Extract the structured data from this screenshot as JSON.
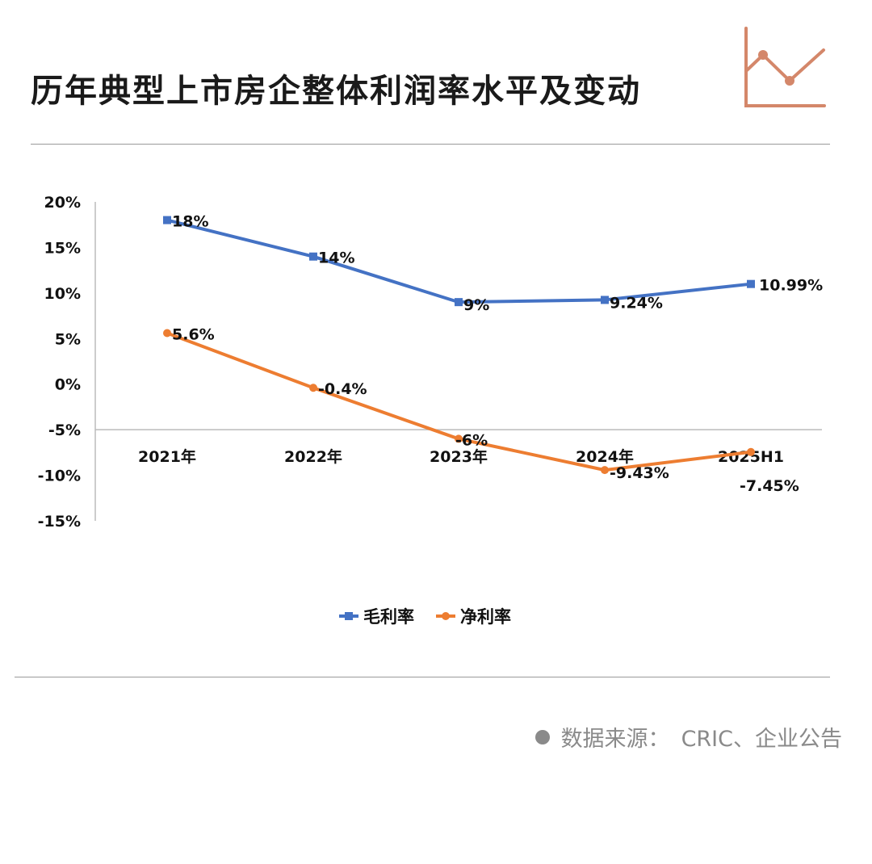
{
  "title": "历年典型上市房企整体利润率水平及变动",
  "source": {
    "label": "数据来源：",
    "text": "CRIC、企业公告"
  },
  "header_icon": "line-chart-icon",
  "colors": {
    "gross": "#4472c4",
    "net": "#ed7d31",
    "icon": "#d4876a"
  },
  "chart_data": {
    "type": "line",
    "categories": [
      "2021年",
      "2022年",
      "2023年",
      "2024年",
      "2025H1"
    ],
    "y_ticks": [
      "20%",
      "15%",
      "10%",
      "5%",
      "0%",
      "-5%",
      "-10%",
      "-15%"
    ],
    "y_tick_values": [
      20,
      15,
      10,
      5,
      0,
      -5,
      -10,
      -15
    ],
    "ylim": [
      -15,
      20
    ],
    "x_axis_crosses_at": -5,
    "grid": false,
    "legend_position": "bottom",
    "series": [
      {
        "name": "毛利率",
        "values": [
          18,
          14,
          9,
          9.24,
          10.99
        ],
        "labels": [
          "18%",
          "14%",
          "9%",
          "9.24%",
          "10.99%"
        ]
      },
      {
        "name": "净利率",
        "values": [
          5.6,
          -0.4,
          -6,
          -9.43,
          -7.45
        ],
        "labels": [
          "5.6%",
          "-0.4%",
          "-6%",
          "-9.43%",
          "-7.45%"
        ]
      }
    ]
  }
}
